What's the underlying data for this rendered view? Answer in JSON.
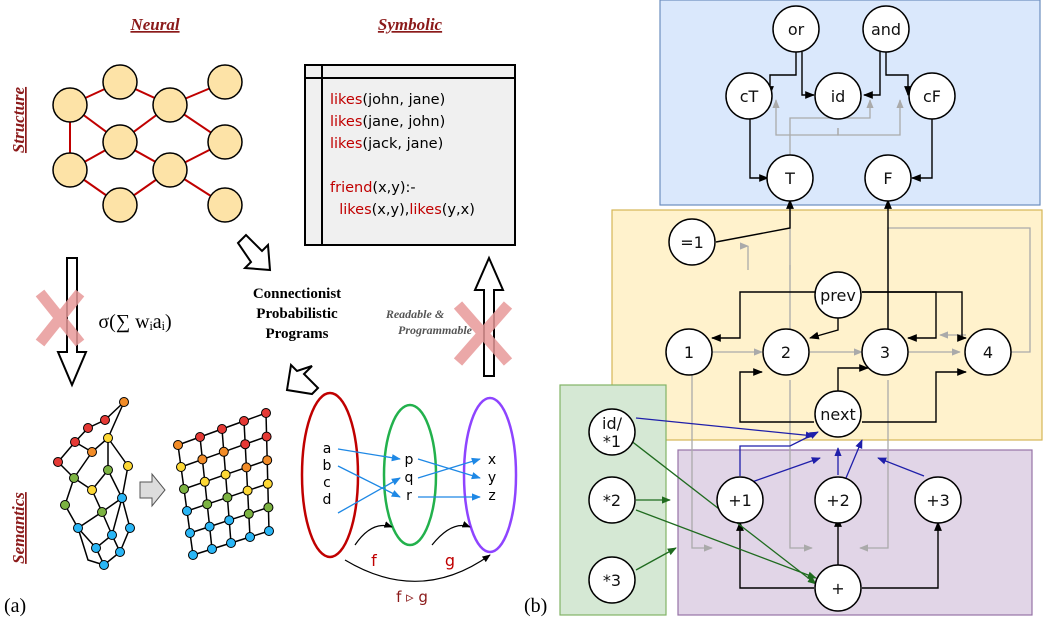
{
  "panel_a": {
    "label": "(a)",
    "headers": {
      "neural": "Neural",
      "symbolic": "Symbolic"
    },
    "row_labels": {
      "structure": "Structure",
      "semantics": "Semantics"
    },
    "center_text": [
      "Connectionist",
      "Probabilistic",
      "Programs"
    ],
    "formula": "σ(∑ wᵢaᵢ)",
    "readable_text": [
      "Readable &",
      "Programmable"
    ],
    "code_lines": [
      {
        "pred": "likes",
        "rest": "(john, jane)"
      },
      {
        "pred": "likes",
        "rest": "(jane, john)"
      },
      {
        "pred": "likes",
        "rest": "(jack, jane)"
      },
      {
        "pred": "",
        "rest": ""
      },
      {
        "pred": "friend",
        "rest": "(x,y):-"
      },
      {
        "pred": "",
        "rest": "  likes(x,y),likes(y,x)"
      }
    ],
    "sets": {
      "left": [
        "a",
        "b",
        "c",
        "d"
      ],
      "middle": [
        "p",
        "q",
        "r"
      ],
      "right": [
        "x",
        "y",
        "z"
      ]
    },
    "function_labels": {
      "f": "f",
      "g": "g",
      "composed": "f ▹ g"
    }
  },
  "panel_b": {
    "label": "(b)",
    "colors": {
      "blue": "#dae8fc",
      "yellow": "#fff2cc",
      "green": "#d5e8d4",
      "purple": "#e1d5e7"
    },
    "nodes": {
      "or": "or",
      "and": "and",
      "cT": "cT",
      "id": "id",
      "cF": "cF",
      "T": "T",
      "F": "F",
      "eq1": "=1",
      "prev": "prev",
      "n1": "1",
      "n2": "2",
      "n3": "3",
      "n4": "4",
      "next": "next",
      "id1a": "id/",
      "id1b": "*1",
      "m2": "*2",
      "m3": "*3",
      "p1": "+1",
      "p2": "+2",
      "p3": "+3",
      "plus": "+"
    }
  }
}
